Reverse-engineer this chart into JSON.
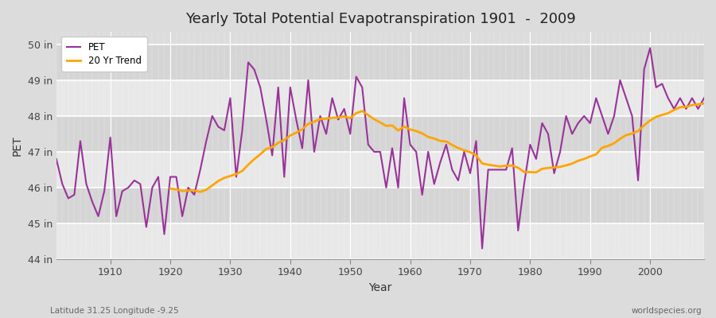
{
  "title": "Yearly Total Potential Evapotranspiration 1901  -  2009",
  "xlabel": "Year",
  "ylabel": "PET",
  "footnote_left": "Latitude 31.25 Longitude -9.25",
  "footnote_right": "worldspecies.org",
  "ylim_min": 44.0,
  "ylim_max": 50.35,
  "ytick_values": [
    44,
    45,
    46,
    47,
    48,
    49,
    50
  ],
  "ytick_labels": [
    "44 in",
    "45 in",
    "46 in",
    "47 in",
    "48 in",
    "49 in",
    "50 in"
  ],
  "xtick_values": [
    1910,
    1920,
    1930,
    1940,
    1950,
    1960,
    1970,
    1980,
    1990,
    2000
  ],
  "pet_color": "#993399",
  "trend_color": "#FFA500",
  "bg_color": "#DCDCDC",
  "plot_bg_color": "#DCDCDC",
  "stripe_color_light": "#E8E8E8",
  "stripe_color_dark": "#D5D5D5",
  "grid_color": "#FFFFFF",
  "legend_labels": [
    "PET",
    "20 Yr Trend"
  ],
  "start_year": 1901,
  "trend_window": 20,
  "pet_values": [
    46.8,
    46.1,
    45.7,
    45.8,
    47.3,
    46.1,
    45.6,
    45.2,
    45.9,
    47.4,
    45.2,
    45.9,
    46.0,
    46.2,
    46.1,
    44.9,
    46.0,
    46.3,
    44.7,
    46.3,
    46.3,
    45.2,
    46.0,
    45.8,
    46.5,
    47.3,
    48.0,
    47.7,
    47.6,
    48.5,
    46.3,
    47.6,
    49.5,
    49.3,
    48.8,
    47.9,
    46.9,
    48.8,
    46.3,
    48.8,
    47.9,
    47.1,
    49.0,
    47.0,
    48.0,
    47.5,
    48.5,
    47.9,
    48.2,
    47.5,
    49.1,
    48.8,
    47.2,
    47.0,
    47.0,
    46.0,
    47.1,
    46.0,
    48.5,
    47.2,
    47.0,
    45.8,
    47.0,
    46.1,
    46.7,
    47.2,
    46.5,
    46.2,
    47.0,
    46.4,
    47.3,
    44.3,
    46.5,
    46.5,
    46.5,
    46.5,
    47.1,
    44.8,
    46.1,
    47.2,
    46.8,
    47.8,
    47.5,
    46.4,
    47.0,
    48.0,
    47.5,
    47.8,
    48.0,
    47.8,
    48.5,
    48.0,
    47.5,
    48.0,
    49.0,
    48.5,
    48.0,
    46.2,
    49.3,
    49.9,
    48.8,
    48.9,
    48.5,
    48.2,
    48.5,
    48.2,
    48.5,
    48.2,
    48.5
  ]
}
